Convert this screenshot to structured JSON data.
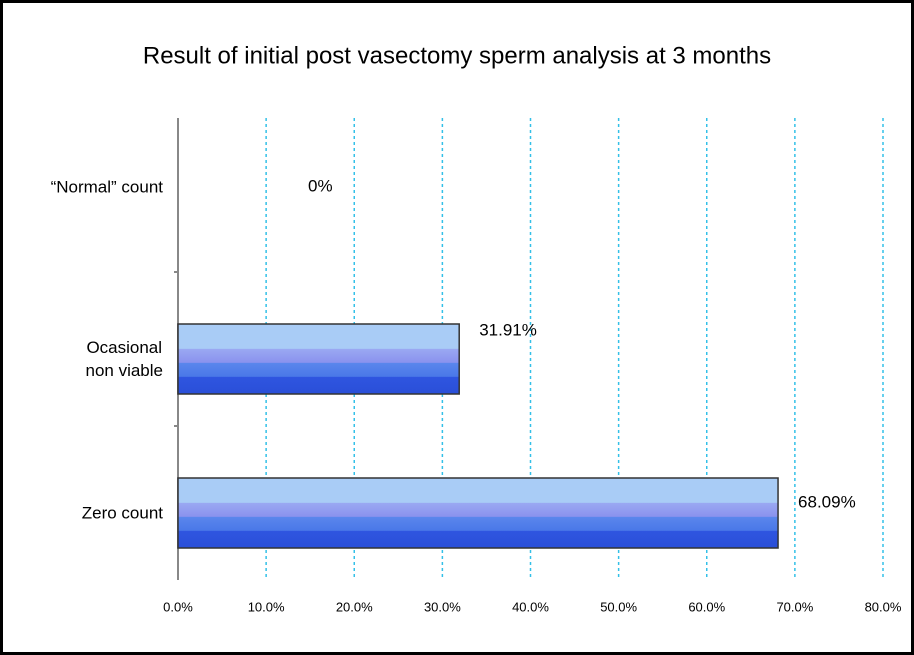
{
  "chart_data": {
    "type": "bar",
    "orientation": "horizontal",
    "title": "Result of initial post vasectomy sperm analysis at 3 months",
    "categories": [
      "“Normal” count",
      "Ocasional\nnon viable",
      "Zero count"
    ],
    "values": [
      0,
      31.91,
      68.09
    ],
    "value_labels": [
      "0%",
      "31.91%",
      "68.09%"
    ],
    "color": "#4a78e8",
    "xlim": [
      0,
      80
    ],
    "xticks": [
      {
        "value": 0,
        "label": "0.0%"
      },
      {
        "value": 10,
        "label": "10.0%"
      },
      {
        "value": 20,
        "label": "20.0%"
      },
      {
        "value": 30,
        "label": "30.0%"
      },
      {
        "value": 40,
        "label": "40.0%"
      },
      {
        "value": 50,
        "label": "50.0%"
      },
      {
        "value": 60,
        "label": "60.0%"
      },
      {
        "value": 70,
        "label": "70.0%"
      },
      {
        "value": 80,
        "label": "80.0%"
      }
    ],
    "grid": true
  }
}
